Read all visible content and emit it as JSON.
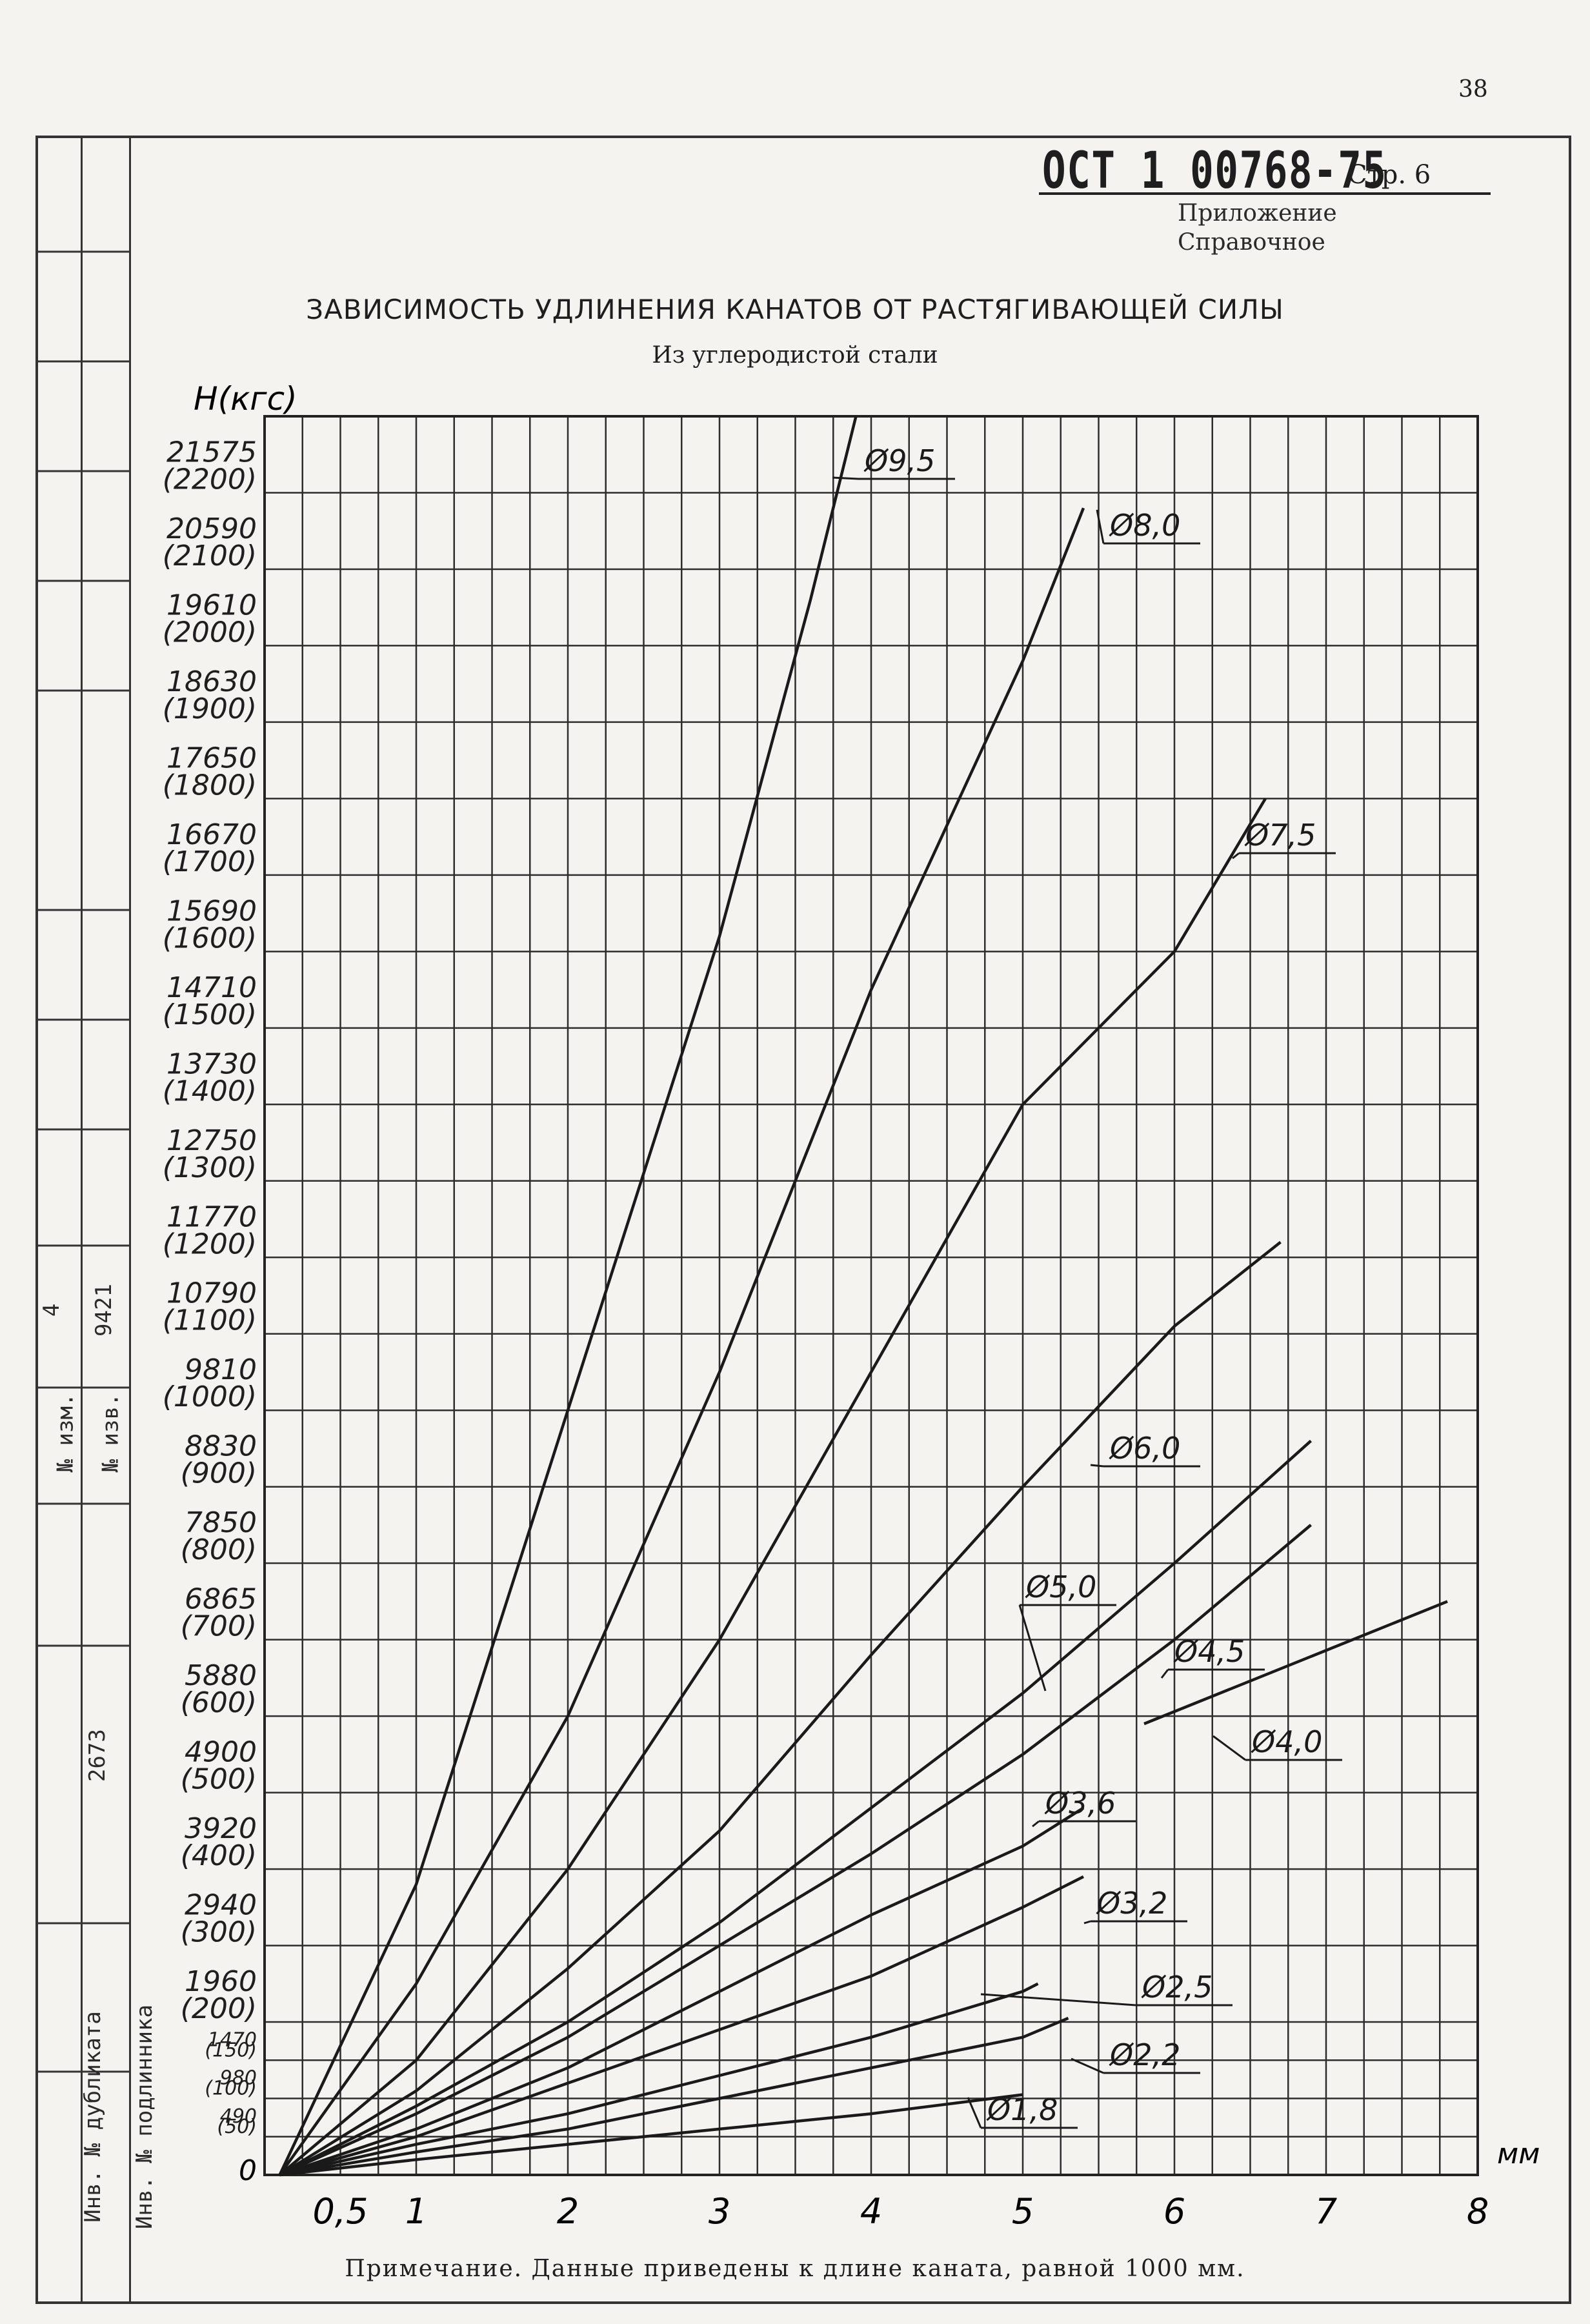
{
  "page_number": "38",
  "header": {
    "doc_number": "ОСТ 1 00768-75",
    "page_label": "Стр. 6",
    "appendix": "Приложение",
    "appendix_type": "Справочное"
  },
  "side_table": {
    "izm_label": "№ изм.",
    "izm_value": "4",
    "izv_label": "№ изв.",
    "izv_value": "9421",
    "inv_dubl_label": "Инв. № дубликата",
    "inv_podl_label": "Инв. № подлинника",
    "inv_podl_value": "2673"
  },
  "note": "Примечание. Данные приведены к длине каната, равной 1000 мм.",
  "chart_data": {
    "type": "line",
    "title": "ЗАВИСИМОСТЬ УДЛИНЕНИЯ КАНАТОВ ОТ РАСТЯГИВАЮЩЕЙ СИЛЫ",
    "subtitle": "Из углеродистой стали",
    "xlabel": "мм",
    "ylabel": "Н(кгс)",
    "xlim": [
      0,
      8
    ],
    "ylim": [
      0,
      2300
    ],
    "grid": true,
    "x_ticks": [
      "0,5",
      "1",
      "2",
      "3",
      "4",
      "5",
      "6",
      "7",
      "8"
    ],
    "x_tick_values": [
      0.5,
      1,
      2,
      3,
      4,
      5,
      6,
      7,
      8
    ],
    "y_ticks": [
      {
        "kgf": 50,
        "n": "490",
        "nk": "(50)"
      },
      {
        "kgf": 100,
        "n": "980",
        "nk": "(100)"
      },
      {
        "kgf": 150,
        "n": "1470",
        "nk": "(150)"
      },
      {
        "kgf": 200,
        "n": "1960",
        "nk": "(200)"
      },
      {
        "kgf": 300,
        "n": "2940",
        "nk": "(300)"
      },
      {
        "kgf": 400,
        "n": "3920",
        "nk": "(400)"
      },
      {
        "kgf": 500,
        "n": "4900",
        "nk": "(500)"
      },
      {
        "kgf": 600,
        "n": "5880",
        "nk": "(600)"
      },
      {
        "kgf": 700,
        "n": "6865",
        "nk": "(700)"
      },
      {
        "kgf": 800,
        "n": "7850",
        "nk": "(800)"
      },
      {
        "kgf": 900,
        "n": "8830",
        "nk": "(900)"
      },
      {
        "kgf": 1000,
        "n": "9810",
        "nk": "(1000)"
      },
      {
        "kgf": 1100,
        "n": "10790",
        "nk": "(1100)"
      },
      {
        "kgf": 1200,
        "n": "11770",
        "nk": "(1200)"
      },
      {
        "kgf": 1300,
        "n": "12750",
        "nk": "(1300)"
      },
      {
        "kgf": 1400,
        "n": "13730",
        "nk": "(1400)"
      },
      {
        "kgf": 1500,
        "n": "14710",
        "nk": "(1500)"
      },
      {
        "kgf": 1600,
        "n": "15690",
        "nk": "(1600)"
      },
      {
        "kgf": 1700,
        "n": "16670",
        "nk": "(1700)"
      },
      {
        "kgf": 1800,
        "n": "17650",
        "nk": "(1800)"
      },
      {
        "kgf": 1900,
        "n": "18630",
        "nk": "(1900)"
      },
      {
        "kgf": 2000,
        "n": "19610",
        "nk": "(2000)"
      },
      {
        "kgf": 2100,
        "n": "20590",
        "nk": "(2100)"
      },
      {
        "kgf": 2200,
        "n": "21575",
        "nk": "(2200)"
      }
    ],
    "origin_label": "0",
    "series": [
      {
        "name": "Ø9,5",
        "points": [
          [
            0.1,
            0
          ],
          [
            1,
            380
          ],
          [
            2,
            1000
          ],
          [
            3,
            1620
          ],
          [
            3.6,
            2060
          ],
          [
            3.9,
            2300
          ]
        ]
      },
      {
        "name": "Ø8,0",
        "points": [
          [
            0.1,
            0
          ],
          [
            1,
            250
          ],
          [
            2,
            600
          ],
          [
            3,
            1050
          ],
          [
            4,
            1550
          ],
          [
            5,
            1980
          ],
          [
            5.4,
            2180
          ]
        ]
      },
      {
        "name": "Ø7,5",
        "points": [
          [
            0.1,
            0
          ],
          [
            1,
            150
          ],
          [
            2,
            400
          ],
          [
            3,
            700
          ],
          [
            4,
            1050
          ],
          [
            5,
            1400
          ],
          [
            6,
            1600
          ],
          [
            6.6,
            1800
          ]
        ]
      },
      {
        "name": "Ø6,0",
        "points": [
          [
            0.1,
            0
          ],
          [
            1,
            110
          ],
          [
            2,
            270
          ],
          [
            3,
            450
          ],
          [
            4,
            680
          ],
          [
            5,
            900
          ],
          [
            6,
            1110
          ],
          [
            6.7,
            1220
          ]
        ]
      },
      {
        "name": "Ø5,0",
        "points": [
          [
            0.1,
            0
          ],
          [
            1,
            90
          ],
          [
            2,
            200
          ],
          [
            3,
            330
          ],
          [
            4,
            480
          ],
          [
            5,
            630
          ],
          [
            6,
            800
          ],
          [
            6.9,
            960
          ]
        ]
      },
      {
        "name": "Ø4,5",
        "points": [
          [
            0.1,
            0
          ],
          [
            1,
            80
          ],
          [
            2,
            180
          ],
          [
            3,
            300
          ],
          [
            4,
            420
          ],
          [
            5,
            550
          ],
          [
            6,
            700
          ],
          [
            6.9,
            850
          ]
        ]
      },
      {
        "name": "Ø4,0",
        "points": [
          [
            5.8,
            590
          ],
          [
            7.8,
            750
          ]
        ]
      },
      {
        "name": "Ø3,6",
        "points": [
          [
            0.1,
            0
          ],
          [
            1,
            60
          ],
          [
            2,
            140
          ],
          [
            3,
            240
          ],
          [
            4,
            340
          ],
          [
            5,
            430
          ],
          [
            5.4,
            480
          ]
        ]
      },
      {
        "name": "Ø3,2",
        "points": [
          [
            0.1,
            0
          ],
          [
            1,
            50
          ],
          [
            2,
            120
          ],
          [
            3,
            190
          ],
          [
            4,
            260
          ],
          [
            5,
            350
          ],
          [
            5.4,
            390
          ]
        ]
      },
      {
        "name": "Ø2,5",
        "points": [
          [
            0.1,
            0
          ],
          [
            1,
            40
          ],
          [
            2,
            80
          ],
          [
            3,
            130
          ],
          [
            4,
            180
          ],
          [
            5,
            240
          ],
          [
            5.1,
            250
          ]
        ]
      },
      {
        "name": "Ø2,2",
        "points": [
          [
            0.1,
            0
          ],
          [
            1,
            30
          ],
          [
            2,
            60
          ],
          [
            3,
            100
          ],
          [
            4,
            140
          ],
          [
            5,
            180
          ],
          [
            5.3,
            205
          ]
        ]
      },
      {
        "name": "Ø1,8",
        "points": [
          [
            0.1,
            0
          ],
          [
            1,
            20
          ],
          [
            2,
            40
          ],
          [
            3,
            60
          ],
          [
            4,
            80
          ],
          [
            5,
            105
          ]
        ]
      }
    ]
  }
}
